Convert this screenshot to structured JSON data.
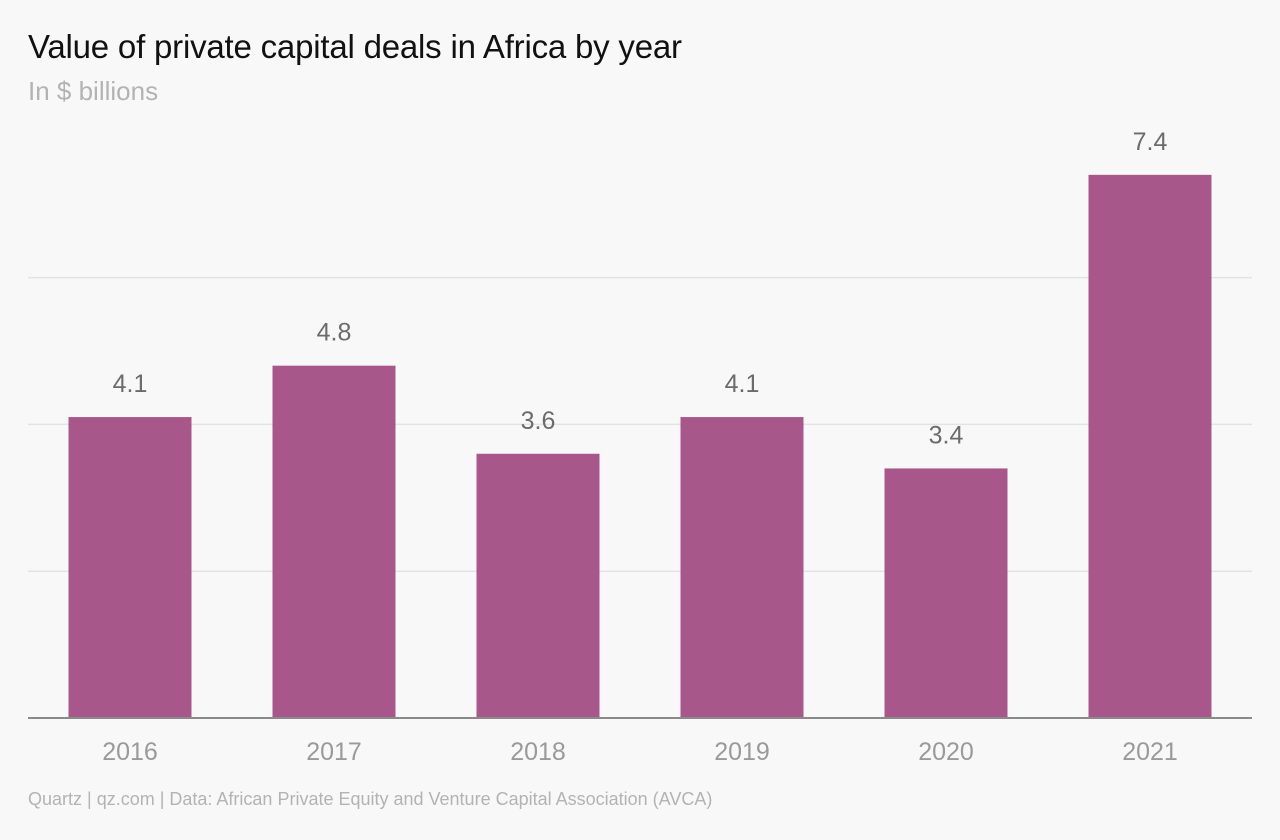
{
  "chart_data": {
    "type": "bar",
    "title": "Value of private capital deals in Africa by year",
    "subtitle": "In $ billions",
    "categories": [
      "2016",
      "2017",
      "2018",
      "2019",
      "2020",
      "2021"
    ],
    "values": [
      4.1,
      4.8,
      3.6,
      4.1,
      3.4,
      7.4
    ],
    "data_labels": [
      "4.1",
      "4.8",
      "3.6",
      "4.1",
      "3.4",
      "7.4"
    ],
    "ylim": [
      0,
      8
    ],
    "gridlines": [
      2,
      4,
      6
    ],
    "grid": true,
    "bar_color": "#a8578a",
    "source": "Quartz | qz.com | Data: African Private Equity and Venture Capital Association (AVCA)"
  }
}
